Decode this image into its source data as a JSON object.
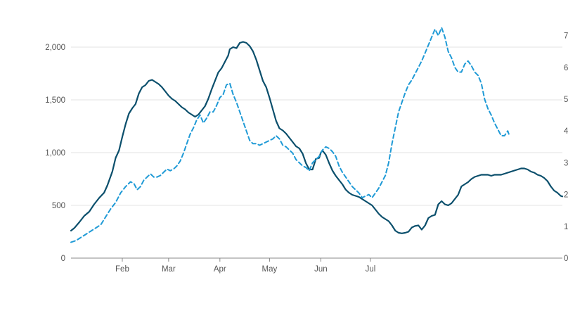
{
  "chart_data": {
    "type": "line",
    "title": "",
    "xlabel": "",
    "ylabel": "",
    "x_tick_labels": [
      "Feb",
      "Mar",
      "Apr",
      "May",
      "Jun",
      "Jul"
    ],
    "y_left": {
      "ylim": [
        0,
        2300
      ],
      "ticks": [
        0,
        500,
        1000,
        1500,
        2000
      ],
      "tick_labels": [
        "0",
        "500",
        "1,000",
        "1,500",
        "2,000"
      ]
    },
    "y_right": {
      "ylim": [
        0,
        7.3
      ],
      "ticks": [
        0,
        1,
        2,
        3,
        4,
        5,
        6,
        7
      ],
      "tick_labels": [
        "0",
        "1",
        "2",
        "3",
        "4",
        "5",
        "6",
        "7"
      ]
    },
    "grid": true,
    "series": [
      {
        "axis": "left",
        "style": "solid",
        "color": "#0b4f6c",
        "points": [
          [
            0,
            260
          ],
          [
            2,
            285
          ],
          [
            5,
            340
          ],
          [
            8,
            400
          ],
          [
            11,
            440
          ],
          [
            14,
            510
          ],
          [
            17,
            570
          ],
          [
            20,
            620
          ],
          [
            22,
            690
          ],
          [
            25,
            820
          ],
          [
            27,
            950
          ],
          [
            29,
            1020
          ],
          [
            31,
            1150
          ],
          [
            33,
            1270
          ],
          [
            35,
            1370
          ],
          [
            37,
            1420
          ],
          [
            39,
            1460
          ],
          [
            41,
            1560
          ],
          [
            43,
            1620
          ],
          [
            45,
            1640
          ],
          [
            47,
            1680
          ],
          [
            49,
            1690
          ],
          [
            51,
            1670
          ],
          [
            53,
            1650
          ],
          [
            55,
            1620
          ],
          [
            57,
            1580
          ],
          [
            59,
            1540
          ],
          [
            61,
            1510
          ],
          [
            63,
            1490
          ],
          [
            65,
            1460
          ],
          [
            67,
            1430
          ],
          [
            69,
            1410
          ],
          [
            71,
            1380
          ],
          [
            73,
            1360
          ],
          [
            75,
            1340
          ],
          [
            77,
            1360
          ],
          [
            79,
            1400
          ],
          [
            81,
            1440
          ],
          [
            83,
            1510
          ],
          [
            85,
            1600
          ],
          [
            87,
            1680
          ],
          [
            89,
            1760
          ],
          [
            91,
            1800
          ],
          [
            93,
            1860
          ],
          [
            95,
            1920
          ],
          [
            96,
            1980
          ],
          [
            98,
            2000
          ],
          [
            100,
            1990
          ],
          [
            102,
            2040
          ],
          [
            104,
            2050
          ],
          [
            106,
            2040
          ],
          [
            108,
            2010
          ],
          [
            110,
            1960
          ],
          [
            112,
            1880
          ],
          [
            114,
            1780
          ],
          [
            116,
            1680
          ],
          [
            118,
            1620
          ],
          [
            120,
            1520
          ],
          [
            122,
            1410
          ],
          [
            124,
            1300
          ],
          [
            126,
            1230
          ],
          [
            128,
            1210
          ],
          [
            130,
            1180
          ],
          [
            132,
            1140
          ],
          [
            134,
            1100
          ],
          [
            136,
            1060
          ],
          [
            138,
            1040
          ],
          [
            140,
            990
          ],
          [
            142,
            900
          ],
          [
            144,
            840
          ],
          [
            146,
            840
          ],
          [
            148,
            940
          ],
          [
            150,
            950
          ],
          [
            151,
            1000
          ],
          [
            152,
            1020
          ],
          [
            154,
            980
          ],
          [
            156,
            900
          ],
          [
            158,
            830
          ],
          [
            160,
            780
          ],
          [
            162,
            740
          ],
          [
            164,
            700
          ],
          [
            166,
            650
          ],
          [
            168,
            620
          ],
          [
            170,
            600
          ],
          [
            172,
            590
          ],
          [
            174,
            580
          ],
          [
            176,
            560
          ],
          [
            178,
            540
          ],
          [
            180,
            520
          ],
          [
            182,
            500
          ],
          [
            184,
            460
          ],
          [
            186,
            420
          ],
          [
            188,
            390
          ],
          [
            190,
            370
          ],
          [
            192,
            350
          ],
          [
            194,
            310
          ],
          [
            196,
            260
          ],
          [
            198,
            240
          ],
          [
            200,
            235
          ],
          [
            202,
            240
          ],
          [
            204,
            250
          ],
          [
            206,
            290
          ],
          [
            208,
            305
          ],
          [
            210,
            310
          ],
          [
            212,
            270
          ],
          [
            214,
            310
          ],
          [
            216,
            380
          ],
          [
            218,
            400
          ],
          [
            220,
            410
          ],
          [
            222,
            510
          ],
          [
            224,
            540
          ],
          [
            226,
            510
          ],
          [
            228,
            500
          ],
          [
            230,
            520
          ],
          [
            232,
            560
          ],
          [
            234,
            600
          ],
          [
            236,
            680
          ],
          [
            238,
            700
          ],
          [
            240,
            720
          ],
          [
            242,
            750
          ],
          [
            244,
            770
          ],
          [
            246,
            780
          ],
          [
            248,
            790
          ],
          [
            250,
            790
          ],
          [
            252,
            790
          ],
          [
            254,
            780
          ],
          [
            256,
            790
          ],
          [
            258,
            790
          ],
          [
            260,
            790
          ],
          [
            262,
            800
          ],
          [
            264,
            810
          ],
          [
            266,
            820
          ],
          [
            268,
            830
          ],
          [
            270,
            840
          ],
          [
            272,
            850
          ],
          [
            274,
            850
          ],
          [
            276,
            840
          ],
          [
            278,
            820
          ],
          [
            280,
            810
          ],
          [
            282,
            790
          ],
          [
            284,
            780
          ],
          [
            286,
            760
          ],
          [
            288,
            730
          ],
          [
            290,
            680
          ],
          [
            292,
            640
          ],
          [
            294,
            620
          ],
          [
            296,
            590
          ],
          [
            297,
            585
          ]
        ]
      },
      {
        "axis": "right",
        "style": "dashed",
        "color": "#1f9ad6",
        "points": [
          [
            0,
            0.5
          ],
          [
            3,
            0.55
          ],
          [
            6,
            0.65
          ],
          [
            9,
            0.75
          ],
          [
            12,
            0.85
          ],
          [
            15,
            0.95
          ],
          [
            18,
            1.05
          ],
          [
            21,
            1.3
          ],
          [
            24,
            1.55
          ],
          [
            27,
            1.75
          ],
          [
            30,
            2.05
          ],
          [
            33,
            2.25
          ],
          [
            36,
            2.4
          ],
          [
            38,
            2.35
          ],
          [
            40,
            2.15
          ],
          [
            42,
            2.25
          ],
          [
            44,
            2.45
          ],
          [
            46,
            2.55
          ],
          [
            48,
            2.65
          ],
          [
            50,
            2.55
          ],
          [
            52,
            2.55
          ],
          [
            54,
            2.6
          ],
          [
            56,
            2.7
          ],
          [
            58,
            2.8
          ],
          [
            60,
            2.75
          ],
          [
            62,
            2.8
          ],
          [
            64,
            2.9
          ],
          [
            66,
            3.05
          ],
          [
            68,
            3.3
          ],
          [
            70,
            3.6
          ],
          [
            72,
            3.9
          ],
          [
            74,
            4.1
          ],
          [
            76,
            4.35
          ],
          [
            78,
            4.5
          ],
          [
            80,
            4.25
          ],
          [
            82,
            4.4
          ],
          [
            84,
            4.6
          ],
          [
            86,
            4.6
          ],
          [
            88,
            4.8
          ],
          [
            90,
            5.05
          ],
          [
            92,
            5.15
          ],
          [
            94,
            5.45
          ],
          [
            96,
            5.5
          ],
          [
            98,
            5.15
          ],
          [
            100,
            4.9
          ],
          [
            102,
            4.6
          ],
          [
            104,
            4.3
          ],
          [
            106,
            4.0
          ],
          [
            108,
            3.7
          ],
          [
            110,
            3.6
          ],
          [
            112,
            3.6
          ],
          [
            114,
            3.55
          ],
          [
            116,
            3.6
          ],
          [
            118,
            3.65
          ],
          [
            120,
            3.7
          ],
          [
            122,
            3.75
          ],
          [
            124,
            3.85
          ],
          [
            126,
            3.75
          ],
          [
            128,
            3.55
          ],
          [
            130,
            3.5
          ],
          [
            132,
            3.4
          ],
          [
            134,
            3.3
          ],
          [
            136,
            3.1
          ],
          [
            138,
            3.0
          ],
          [
            140,
            2.9
          ],
          [
            142,
            2.85
          ],
          [
            144,
            2.75
          ],
          [
            146,
            3.0
          ],
          [
            148,
            3.1
          ],
          [
            150,
            3.2
          ],
          [
            152,
            3.4
          ],
          [
            154,
            3.5
          ],
          [
            156,
            3.45
          ],
          [
            158,
            3.35
          ],
          [
            160,
            3.2
          ],
          [
            162,
            2.9
          ],
          [
            164,
            2.7
          ],
          [
            166,
            2.55
          ],
          [
            168,
            2.4
          ],
          [
            170,
            2.25
          ],
          [
            172,
            2.15
          ],
          [
            174,
            2.05
          ],
          [
            176,
            1.9
          ],
          [
            178,
            1.95
          ],
          [
            180,
            2.0
          ],
          [
            182,
            1.9
          ],
          [
            184,
            2.05
          ],
          [
            186,
            2.2
          ],
          [
            188,
            2.4
          ],
          [
            190,
            2.6
          ],
          [
            192,
            3.0
          ],
          [
            194,
            3.6
          ],
          [
            196,
            4.1
          ],
          [
            198,
            4.6
          ],
          [
            200,
            4.9
          ],
          [
            202,
            5.2
          ],
          [
            204,
            5.45
          ],
          [
            206,
            5.6
          ],
          [
            208,
            5.8
          ],
          [
            210,
            6.0
          ],
          [
            212,
            6.2
          ],
          [
            214,
            6.45
          ],
          [
            216,
            6.7
          ],
          [
            218,
            6.95
          ],
          [
            220,
            7.2
          ],
          [
            222,
            7.0
          ],
          [
            224,
            7.25
          ],
          [
            226,
            6.95
          ],
          [
            228,
            6.5
          ],
          [
            230,
            6.3
          ],
          [
            232,
            6.0
          ],
          [
            234,
            5.85
          ],
          [
            236,
            5.85
          ],
          [
            238,
            6.1
          ],
          [
            240,
            6.2
          ],
          [
            242,
            6.05
          ],
          [
            244,
            5.85
          ],
          [
            246,
            5.75
          ],
          [
            248,
            5.5
          ],
          [
            250,
            5.0
          ],
          [
            252,
            4.7
          ],
          [
            254,
            4.5
          ],
          [
            256,
            4.25
          ],
          [
            258,
            4.05
          ],
          [
            260,
            3.85
          ],
          [
            262,
            3.85
          ],
          [
            264,
            4.0
          ],
          [
            265,
            3.85
          ]
        ]
      }
    ]
  }
}
